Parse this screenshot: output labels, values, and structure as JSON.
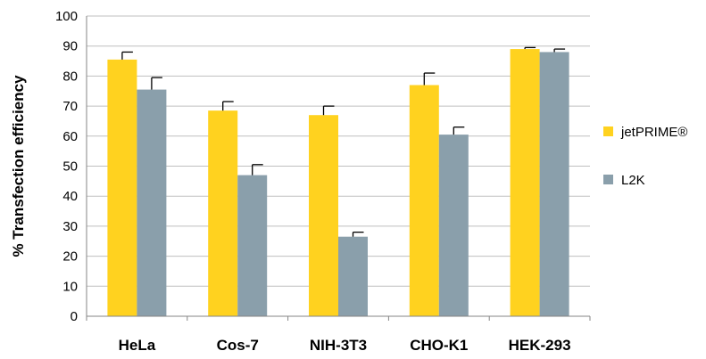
{
  "chart_data": {
    "type": "bar",
    "ylabel": "% Transfection efficiency",
    "xlabel": "",
    "ylim": [
      0,
      100
    ],
    "yticks": [
      0,
      10,
      20,
      30,
      40,
      50,
      60,
      70,
      80,
      90,
      100
    ],
    "grid": true,
    "legend_position": "right",
    "categories": [
      "HeLa",
      "Cos-7",
      "NIH-3T3",
      "CHO-K1",
      "HEK-293"
    ],
    "series": [
      {
        "name": "jetPRIME®",
        "color": "#FFD21F",
        "values": [
          85.5,
          68.5,
          67,
          77,
          89
        ],
        "errors": [
          2.5,
          3,
          3,
          4,
          0.5
        ]
      },
      {
        "name": "L2K",
        "color": "#8A9FAB",
        "values": [
          75.5,
          47,
          26.5,
          60.5,
          88
        ],
        "errors": [
          4,
          3.5,
          1.5,
          2.5,
          1
        ]
      }
    ]
  }
}
